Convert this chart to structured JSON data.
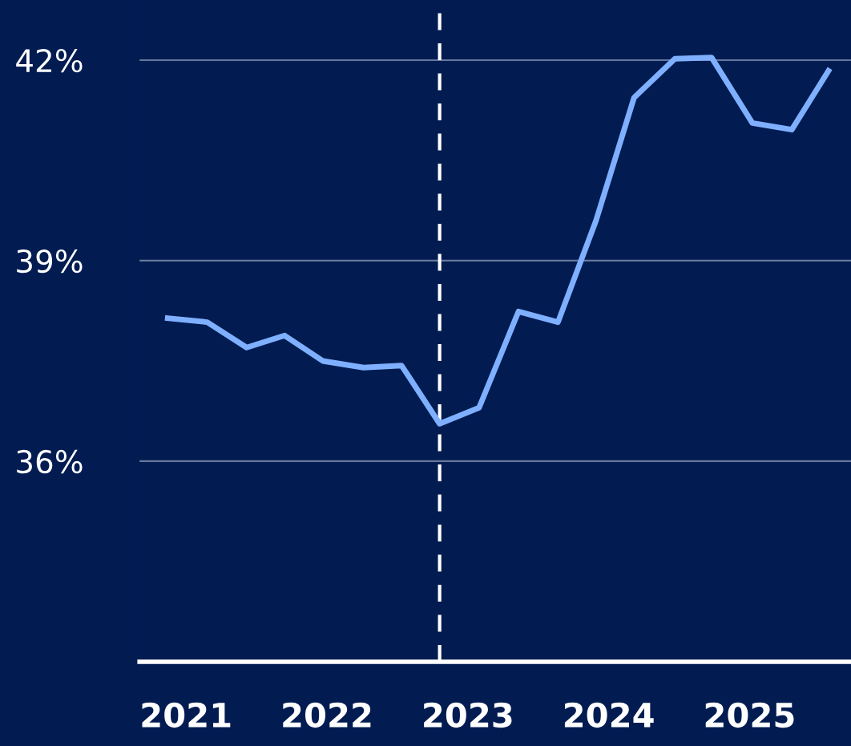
{
  "chart_data": {
    "type": "line",
    "x": [
      2020.87,
      2021.15,
      2021.43,
      2021.7,
      2021.97,
      2022.26,
      2022.53,
      2022.8,
      2023.08,
      2023.36,
      2023.64,
      2023.91,
      2024.18,
      2024.47,
      2024.73,
      2025.02,
      2025.3,
      2025.56
    ],
    "series": [
      {
        "color": "#7fb0ff",
        "values": [
          38.14,
          38.08,
          37.7,
          37.88,
          37.5,
          37.4,
          37.43,
          36.56,
          36.8,
          38.24,
          38.08,
          39.6,
          41.44,
          42.02,
          42.04,
          41.06,
          40.96,
          41.84
        ]
      }
    ],
    "xlim": [
      2020.67,
      2025.72
    ],
    "xticks": [
      2021,
      2022,
      2023,
      2024,
      2025
    ],
    "ylim": [
      33,
      42.9
    ],
    "yticks": [
      {
        "value": 36,
        "label": "36%"
      },
      {
        "value": 39,
        "label": "39%"
      },
      {
        "value": 42,
        "label": "42%"
      }
    ],
    "ref_lines": [
      {
        "axis": "x",
        "value": 2022.8,
        "color": "#ffffff",
        "line_style": "dashed"
      }
    ],
    "grid": "y",
    "marker": "none",
    "line_style": "solid"
  }
}
